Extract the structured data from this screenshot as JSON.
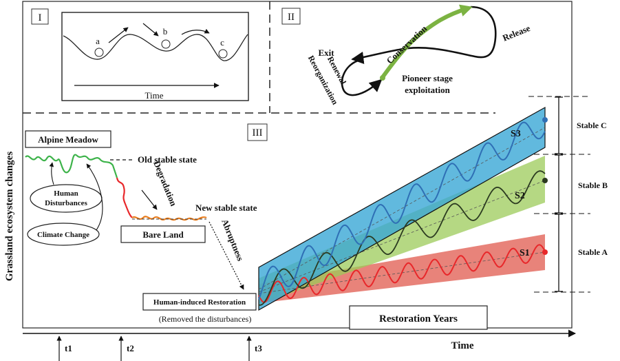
{
  "panels": {
    "p1": {
      "label": "I",
      "ball_a": "a",
      "ball_b": "b",
      "ball_c": "c",
      "time_label": "Time"
    },
    "p2": {
      "label": "II",
      "conservation": "Conservation",
      "release": "Release",
      "exit": "Exit",
      "renewal": "Renewal",
      "reorganization": "Reorganization",
      "pioneer_line1": "Pioneer stage",
      "pioneer_line2": "exploitation"
    },
    "p3": {
      "label": "III",
      "y_axis_label": "Grassland ecosystem changes",
      "x_axis_label": "Time",
      "alpine_meadow": "Alpine Meadow",
      "old_stable_state": "Old stable state",
      "degradation": "Degradation",
      "new_stable_state": "New stable state",
      "abruptness": "Abruptness",
      "bare_land": "Bare Land",
      "human_disturbances_line1": "Human",
      "human_disturbances_line2": "Disturbances",
      "climate_change": "Climate Change",
      "human_restoration": "Human-induced Restoration",
      "removed_disturbances": "(Removed the disturbances)",
      "restoration_years": "Restoration Years",
      "series": [
        "S1",
        "S2",
        "S3"
      ],
      "stable_labels": [
        "Stable C",
        "Stable B",
        "Stable A"
      ],
      "time_marks": [
        "t1",
        "t2",
        "t3"
      ]
    }
  },
  "colors": {
    "band_s3": "#3aa7d6",
    "band_s2": "#9ccb5a",
    "band_s1": "#e05a4e",
    "line_s3": "#2f6fb5",
    "line_s2": "#2b3a20",
    "line_s1": "#e8272a",
    "meadow_green": "#3db34a",
    "bare_orange": "#e87d1e",
    "cycle_green": "#7cb342"
  }
}
